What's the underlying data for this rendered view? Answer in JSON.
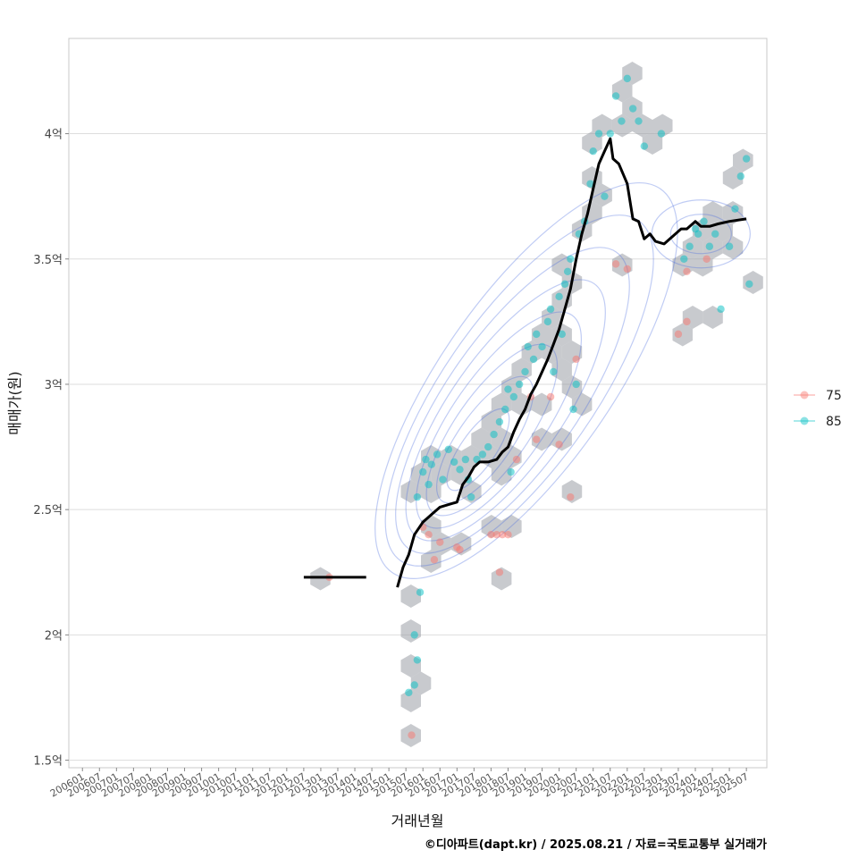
{
  "chart_data": {
    "type": "scatter",
    "xlabel": "거래년월",
    "ylabel": "매매가(원)",
    "x_ticks": [
      "200601",
      "200607",
      "200701",
      "200707",
      "200801",
      "200807",
      "200901",
      "200907",
      "201001",
      "201007",
      "201101",
      "201107",
      "201201",
      "201207",
      "201301",
      "201307",
      "201401",
      "201407",
      "201501",
      "201507",
      "201601",
      "201607",
      "201701",
      "201707",
      "201801",
      "201807",
      "201901",
      "201907",
      "202001",
      "202007",
      "202101",
      "202107",
      "202201",
      "202207",
      "202301",
      "202307",
      "202401",
      "202407",
      "202501",
      "202507"
    ],
    "y_ticks": [
      1.5,
      2,
      2.5,
      3,
      3.5,
      4
    ],
    "y_tick_labels": [
      "1.5억",
      "2억",
      "2.5억",
      "3억",
      "3.5억",
      "4억"
    ],
    "ylim": [
      1.47,
      4.38
    ],
    "grid": "horizontal",
    "legend": {
      "position": "right",
      "entries": [
        {
          "label": "75",
          "color": "#F8766D"
        },
        {
          "label": "85",
          "color": "#00BFC4"
        }
      ]
    },
    "series": [
      {
        "name": "75",
        "points": [
          [
            "2013-04",
            2.23
          ],
          [
            "2015-09",
            1.6
          ],
          [
            "2016-01",
            2.43
          ],
          [
            "2016-03",
            2.4
          ],
          [
            "2016-05",
            2.3
          ],
          [
            "2016-07",
            2.37
          ],
          [
            "2017-01",
            2.35
          ],
          [
            "2017-02",
            2.34
          ],
          [
            "2018-01",
            2.4
          ],
          [
            "2018-03",
            2.4
          ],
          [
            "2018-04",
            2.25
          ],
          [
            "2018-05",
            2.4
          ],
          [
            "2018-07",
            2.4
          ],
          [
            "2018-10",
            2.7
          ],
          [
            "2019-03",
            2.95
          ],
          [
            "2019-05",
            2.78
          ],
          [
            "2019-10",
            2.95
          ],
          [
            "2020-05",
            2.55
          ],
          [
            "2020-07",
            3.1
          ],
          [
            "2021-09",
            3.48
          ],
          [
            "2022-01",
            3.46
          ],
          [
            "2023-07",
            3.2
          ],
          [
            "2023-10",
            3.45
          ],
          [
            "2023-10",
            3.25
          ],
          [
            "2024-05",
            3.5
          ],
          [
            "2020-01",
            2.76
          ]
        ]
      },
      {
        "name": "85",
        "points": [
          [
            "2015-08",
            1.77
          ],
          [
            "2015-10",
            2.0
          ],
          [
            "2015-10",
            1.8
          ],
          [
            "2015-11",
            1.9
          ],
          [
            "2015-12",
            2.17
          ],
          [
            "2015-11",
            2.55
          ],
          [
            "2016-01",
            2.65
          ],
          [
            "2016-02",
            2.7
          ],
          [
            "2016-03",
            2.6
          ],
          [
            "2016-04",
            2.68
          ],
          [
            "2016-06",
            2.72
          ],
          [
            "2016-08",
            2.62
          ],
          [
            "2016-10",
            2.74
          ],
          [
            "2016-12",
            2.69
          ],
          [
            "2017-02",
            2.66
          ],
          [
            "2017-04",
            2.7
          ],
          [
            "2017-05",
            2.62
          ],
          [
            "2017-06",
            2.55
          ],
          [
            "2017-08",
            2.7
          ],
          [
            "2017-10",
            2.72
          ],
          [
            "2017-12",
            2.75
          ],
          [
            "2018-02",
            2.8
          ],
          [
            "2018-04",
            2.85
          ],
          [
            "2018-06",
            2.9
          ],
          [
            "2018-07",
            2.98
          ],
          [
            "2018-08",
            2.65
          ],
          [
            "2018-09",
            2.95
          ],
          [
            "2018-11",
            3.0
          ],
          [
            "2019-01",
            3.05
          ],
          [
            "2019-02",
            3.15
          ],
          [
            "2019-04",
            3.1
          ],
          [
            "2019-05",
            3.2
          ],
          [
            "2019-07",
            3.15
          ],
          [
            "2019-09",
            3.25
          ],
          [
            "2019-10",
            3.3
          ],
          [
            "2019-11",
            3.05
          ],
          [
            "2020-01",
            3.35
          ],
          [
            "2020-02",
            3.2
          ],
          [
            "2020-03",
            3.4
          ],
          [
            "2020-04",
            3.45
          ],
          [
            "2020-05",
            3.5
          ],
          [
            "2020-06",
            2.9
          ],
          [
            "2020-07",
            3.0
          ],
          [
            "2020-08",
            3.6
          ],
          [
            "2020-10",
            3.65
          ],
          [
            "2020-12",
            3.8
          ],
          [
            "2021-01",
            3.93
          ],
          [
            "2021-03",
            4.0
          ],
          [
            "2021-05",
            3.75
          ],
          [
            "2021-07",
            4.0
          ],
          [
            "2021-09",
            4.15
          ],
          [
            "2021-11",
            4.05
          ],
          [
            "2022-01",
            4.22
          ],
          [
            "2022-03",
            4.1
          ],
          [
            "2022-05",
            4.05
          ],
          [
            "2022-07",
            3.95
          ],
          [
            "2023-01",
            4.0
          ],
          [
            "2023-09",
            3.5
          ],
          [
            "2023-11",
            3.55
          ],
          [
            "2024-01",
            3.62
          ],
          [
            "2024-02",
            3.6
          ],
          [
            "2024-04",
            3.65
          ],
          [
            "2024-06",
            3.55
          ],
          [
            "2024-08",
            3.6
          ],
          [
            "2024-10",
            3.3
          ],
          [
            "2025-01",
            3.55
          ],
          [
            "2025-03",
            3.7
          ],
          [
            "2025-05",
            3.83
          ],
          [
            "2025-07",
            3.9
          ],
          [
            "2025-08",
            3.4
          ]
        ]
      }
    ],
    "trend_line": {
      "segments": [
        [
          [
            "2012-07",
            2.23
          ],
          [
            "2014-05",
            2.23
          ]
        ],
        [
          [
            "2015-04",
            2.19
          ],
          [
            "2015-06",
            2.27
          ],
          [
            "2015-08",
            2.32
          ],
          [
            "2015-10",
            2.4
          ],
          [
            "2016-01",
            2.45
          ],
          [
            "2016-04",
            2.48
          ],
          [
            "2016-07",
            2.51
          ],
          [
            "2016-10",
            2.52
          ],
          [
            "2017-01",
            2.53
          ],
          [
            "2017-03",
            2.6
          ],
          [
            "2017-05",
            2.63
          ],
          [
            "2017-07",
            2.67
          ],
          [
            "2017-09",
            2.69
          ],
          [
            "2017-12",
            2.69
          ],
          [
            "2018-03",
            2.7
          ],
          [
            "2018-05",
            2.73
          ],
          [
            "2018-07",
            2.75
          ],
          [
            "2018-09",
            2.81
          ],
          [
            "2018-11",
            2.86
          ],
          [
            "2019-01",
            2.9
          ],
          [
            "2019-03",
            2.96
          ],
          [
            "2019-05",
            3.0
          ],
          [
            "2019-07",
            3.05
          ],
          [
            "2019-09",
            3.1
          ],
          [
            "2019-11",
            3.16
          ],
          [
            "2020-01",
            3.22
          ],
          [
            "2020-03",
            3.3
          ],
          [
            "2020-05",
            3.38
          ],
          [
            "2020-07",
            3.5
          ],
          [
            "2020-09",
            3.6
          ],
          [
            "2020-11",
            3.68
          ],
          [
            "2021-01",
            3.78
          ],
          [
            "2021-03",
            3.88
          ],
          [
            "2021-05",
            3.93
          ],
          [
            "2021-07",
            3.98
          ],
          [
            "2021-08",
            3.9
          ],
          [
            "2021-10",
            3.88
          ],
          [
            "2022-01",
            3.8
          ],
          [
            "2022-03",
            3.66
          ],
          [
            "2022-05",
            3.65
          ],
          [
            "2022-07",
            3.58
          ],
          [
            "2022-09",
            3.6
          ],
          [
            "2022-11",
            3.57
          ],
          [
            "2023-02",
            3.56
          ],
          [
            "2023-05",
            3.59
          ],
          [
            "2023-08",
            3.62
          ],
          [
            "2023-10",
            3.62
          ],
          [
            "2024-01",
            3.65
          ],
          [
            "2024-03",
            3.63
          ],
          [
            "2024-06",
            3.63
          ],
          [
            "2024-09",
            3.64
          ],
          [
            "2025-01",
            3.65
          ],
          [
            "2025-07",
            3.66
          ]
        ]
      ]
    },
    "caption": "©디아파트(dapt.kr) / 2025.08.21 / 자료=국토교통부 실거래가",
    "colors": {
      "hex_fill": "#9a9ea5",
      "contour": "#4a6ee0",
      "grid": "#dddddd",
      "border": "#c8c8c8",
      "trend": "#000000"
    }
  }
}
